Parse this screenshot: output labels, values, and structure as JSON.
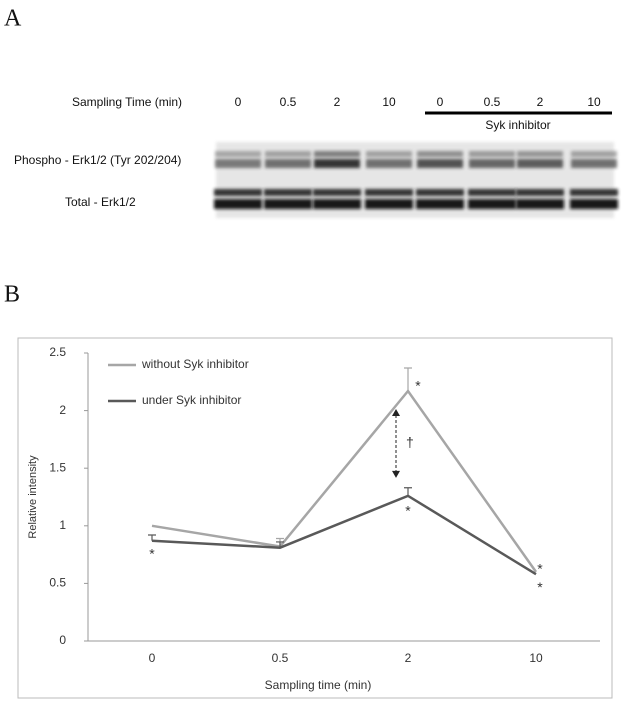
{
  "panel_labels": [
    "A",
    "B"
  ],
  "blot": {
    "time_label": "Sampling Time (min)",
    "times": [
      "0",
      "0.5",
      "2",
      "10",
      "0",
      "0.5",
      "2",
      "10"
    ],
    "inhibitor_label": "Syk inhibitor",
    "rows": [
      "Phospho - Erk1/2 (Tyr 202/204)",
      "Total - Erk1/2"
    ]
  },
  "chart_data": {
    "type": "line",
    "x_label": "Sampling time (min)",
    "y_label": "Relative intensity",
    "categories": [
      "0",
      "0.5",
      "2",
      "10"
    ],
    "series": [
      {
        "name": "without Syk inhibitor",
        "color": "#a6a6a6",
        "values": [
          1.0,
          0.82,
          2.17,
          0.6
        ],
        "errors": [
          null,
          0.07,
          0.2,
          null
        ]
      },
      {
        "name": "under Syk inhibitor",
        "color": "#595959",
        "values": [
          0.87,
          0.81,
          1.26,
          0.58
        ],
        "errors": [
          0.05,
          0.05,
          0.07,
          null
        ]
      }
    ],
    "ylim": [
      0,
      2.5
    ],
    "yticks": [
      0,
      0.5,
      1,
      1.5,
      2,
      2.5
    ],
    "grid": false,
    "legend": "top-left",
    "annotations": [
      "*",
      "*",
      "*",
      "*",
      "*",
      "†"
    ]
  }
}
